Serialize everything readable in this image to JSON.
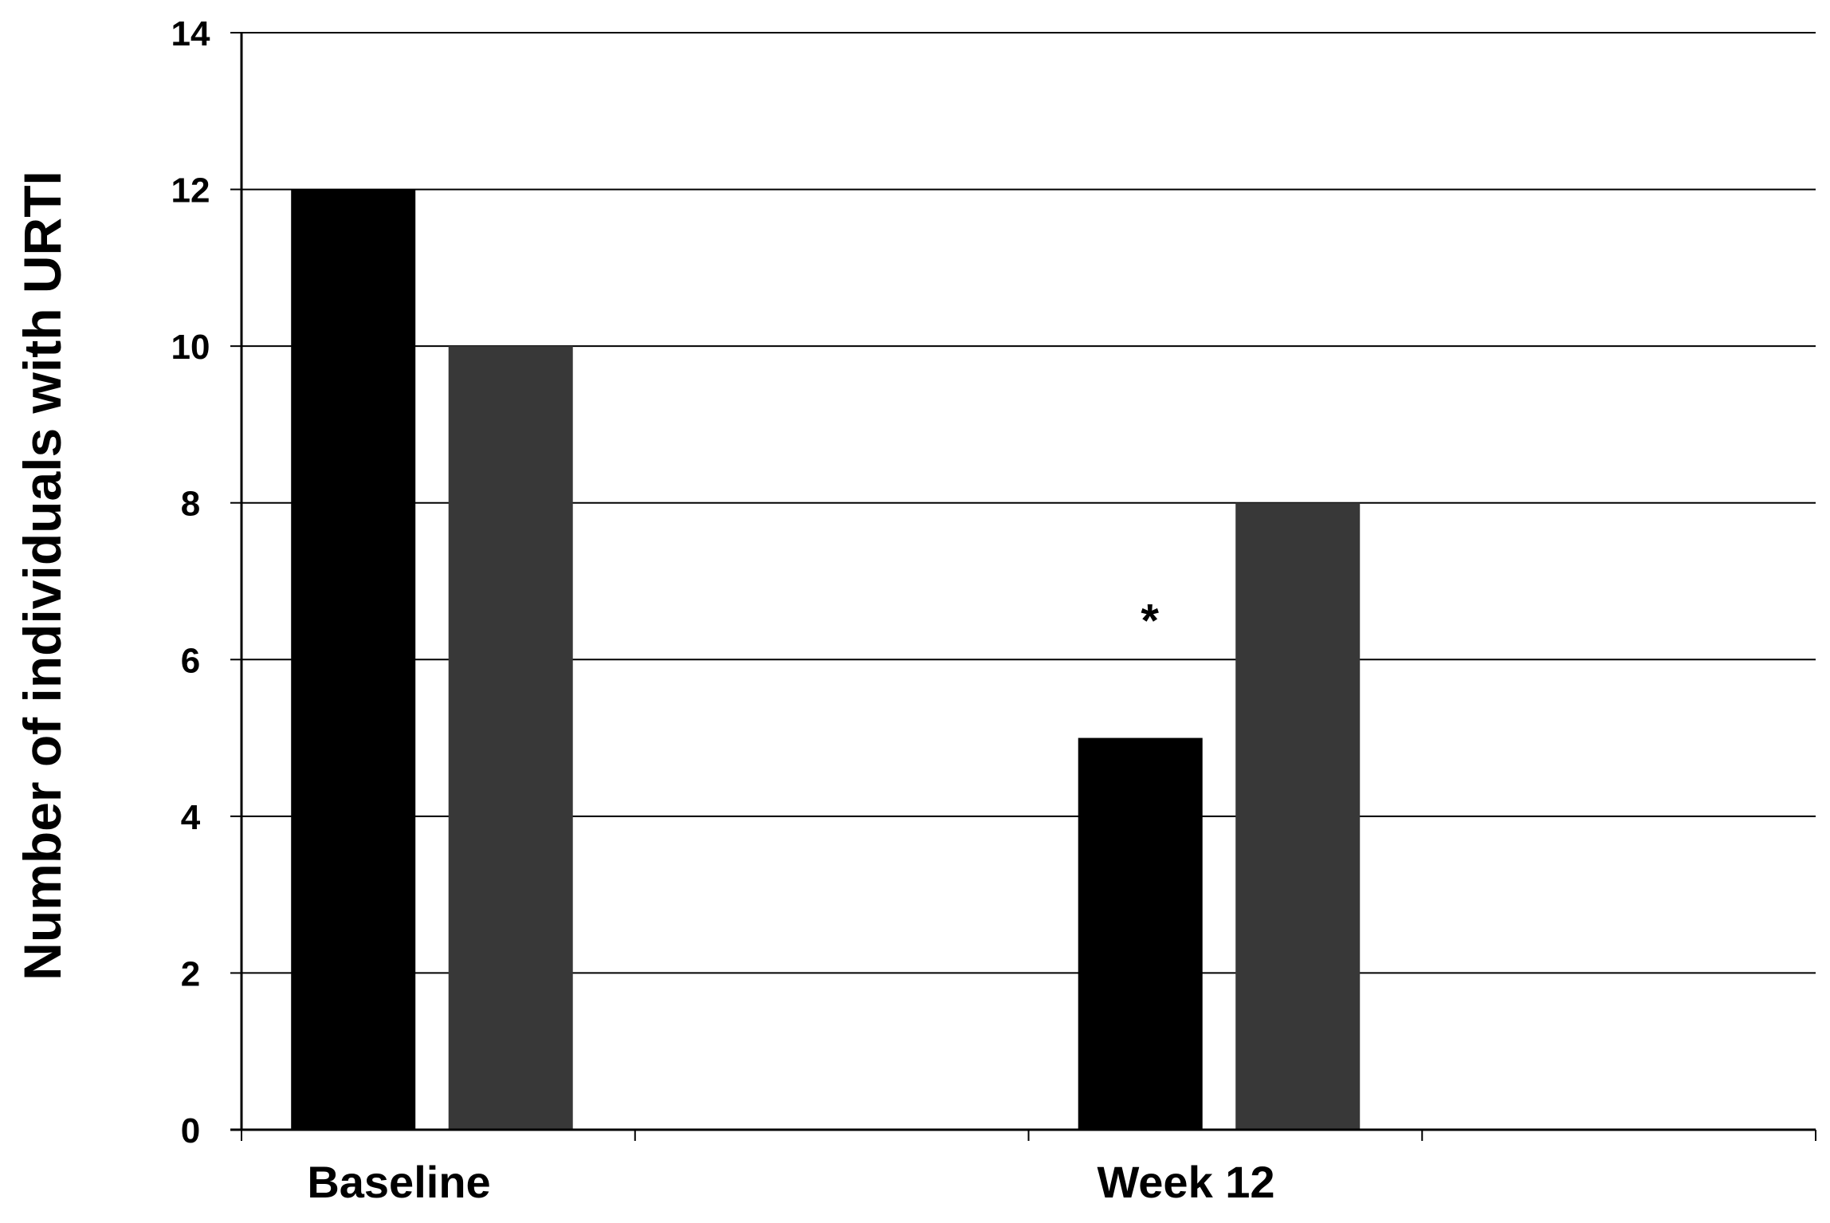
{
  "chart_data": {
    "type": "bar",
    "categories": [
      "Baseline",
      "Week 12"
    ],
    "series": [
      {
        "values": [
          12,
          5
        ],
        "color": "#000000"
      },
      {
        "values": [
          10,
          8
        ],
        "color": "#383838"
      }
    ],
    "title": "",
    "xlabel": "",
    "ylabel": "Number of individuals with URTI",
    "ylim": [
      0,
      14
    ],
    "yticks": [
      0,
      2,
      4,
      6,
      8,
      10,
      12,
      14
    ],
    "grid": true,
    "legend": "none",
    "annotations": [
      {
        "text": "*",
        "category": "Week 12",
        "series_index": 0,
        "y": 6.7
      }
    ]
  }
}
